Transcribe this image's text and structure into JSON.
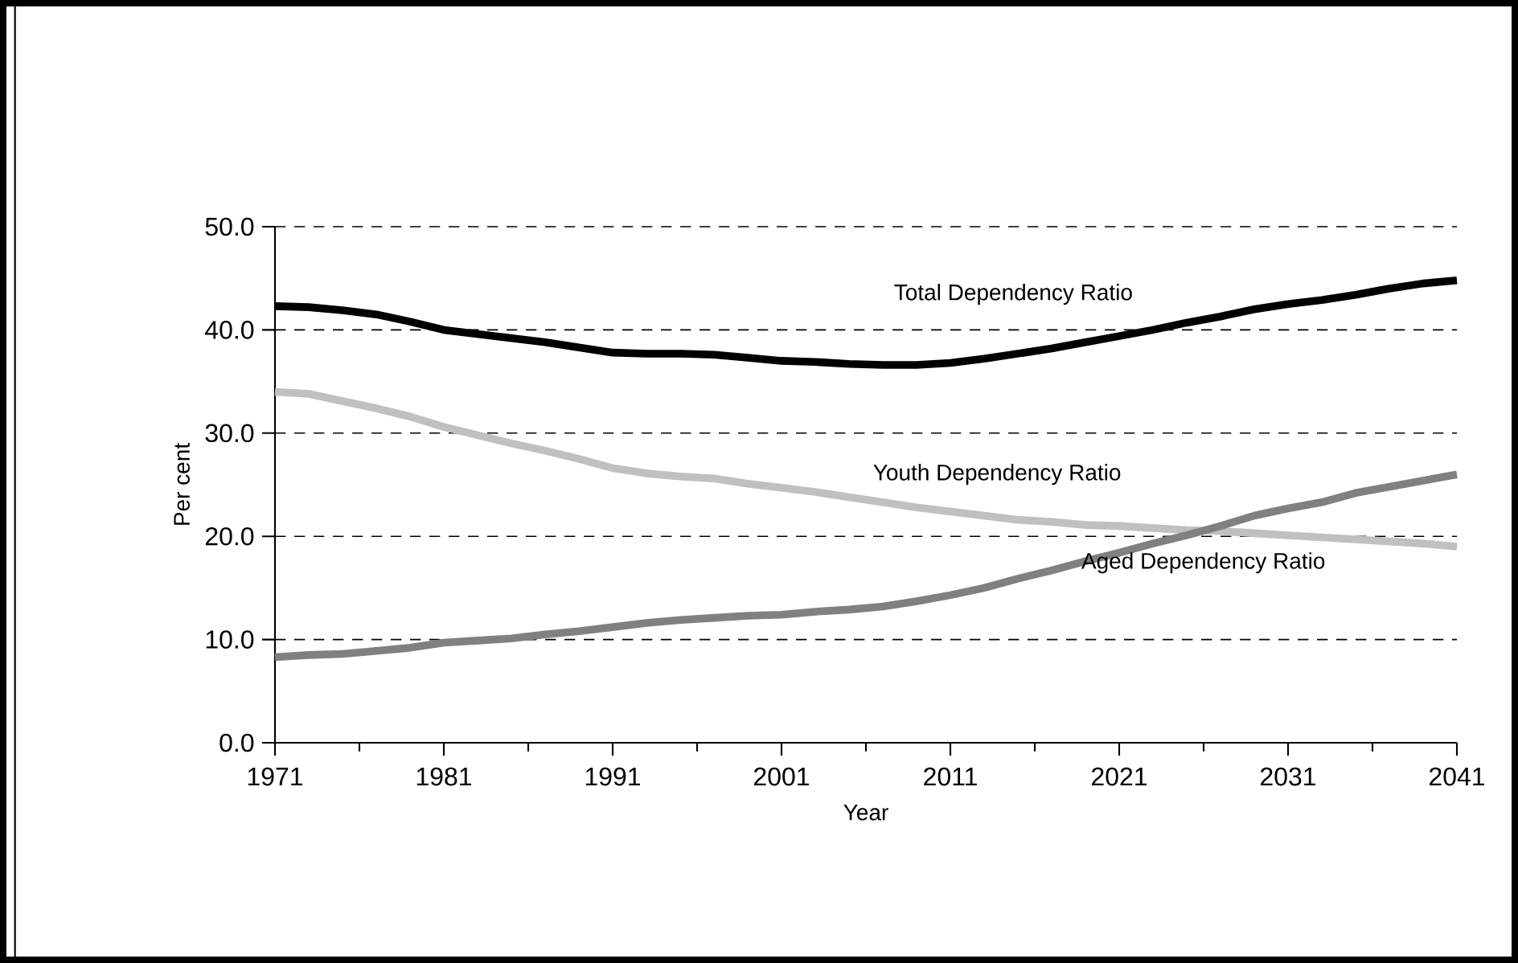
{
  "chart_data": {
    "type": "line",
    "xlabel": "Year",
    "ylabel": "Per cent",
    "x": [
      1971,
      1973,
      1975,
      1977,
      1979,
      1981,
      1983,
      1985,
      1987,
      1989,
      1991,
      1993,
      1995,
      1997,
      1999,
      2001,
      2003,
      2005,
      2007,
      2009,
      2011,
      2013,
      2015,
      2017,
      2019,
      2021,
      2023,
      2025,
      2027,
      2029,
      2031,
      2033,
      2035,
      2037,
      2039,
      2041
    ],
    "series": [
      {
        "name": "Total Dependency Ratio",
        "color": "#000000",
        "values": [
          42.3,
          42.2,
          41.9,
          41.5,
          40.8,
          40.0,
          39.6,
          39.2,
          38.8,
          38.3,
          37.8,
          37.7,
          37.7,
          37.6,
          37.3,
          37.0,
          36.9,
          36.7,
          36.6,
          36.6,
          36.8,
          37.2,
          37.7,
          38.2,
          38.8,
          39.4,
          40.0,
          40.7,
          41.3,
          42.0,
          42.5,
          42.9,
          43.4,
          44.0,
          44.5,
          44.8
        ]
      },
      {
        "name": "Youth Dependency Ratio",
        "color": "#c0c0c0",
        "values": [
          34.0,
          33.8,
          33.1,
          32.4,
          31.6,
          30.6,
          29.8,
          29.0,
          28.3,
          27.5,
          26.6,
          26.1,
          25.8,
          25.6,
          25.1,
          24.7,
          24.3,
          23.8,
          23.3,
          22.8,
          22.4,
          22.0,
          21.6,
          21.4,
          21.1,
          21.0,
          20.8,
          20.6,
          20.5,
          20.3,
          20.1,
          19.9,
          19.7,
          19.5,
          19.3,
          19.0
        ]
      },
      {
        "name": "Aged Dependency Ratio",
        "color": "#808080",
        "values": [
          8.3,
          8.5,
          8.6,
          8.9,
          9.2,
          9.7,
          9.9,
          10.1,
          10.5,
          10.8,
          11.2,
          11.6,
          11.9,
          12.1,
          12.3,
          12.4,
          12.7,
          12.9,
          13.2,
          13.7,
          14.3,
          15.0,
          15.9,
          16.7,
          17.6,
          18.4,
          19.3,
          20.1,
          21.0,
          22.0,
          22.7,
          23.3,
          24.2,
          24.8,
          25.4,
          26.0
        ]
      }
    ],
    "xlim": [
      1971,
      2041
    ],
    "ylim": [
      0,
      50
    ],
    "xticks": [
      1971,
      {
        "value": 1976,
        "label": null
      },
      1981,
      {
        "value": 1986,
        "label": null
      },
      1991,
      {
        "value": 1996,
        "label": null
      },
      2001,
      {
        "value": 2006,
        "label": null
      },
      2011,
      {
        "value": 2016,
        "label": null
      },
      2021,
      {
        "value": 2026,
        "label": null
      },
      2031,
      {
        "value": 2036,
        "label": null
      },
      2041
    ],
    "yticks": [
      {
        "value": 0,
        "label": "0.0"
      },
      {
        "value": 10,
        "label": "10.0"
      },
      {
        "value": 20,
        "label": "20.0"
      },
      {
        "value": 30,
        "label": "30.0"
      },
      {
        "value": 40,
        "label": "40.0"
      },
      {
        "value": 50,
        "label": "50.0"
      }
    ],
    "grid": "y",
    "legend": false,
    "marker": "none",
    "line_style": "solid"
  }
}
